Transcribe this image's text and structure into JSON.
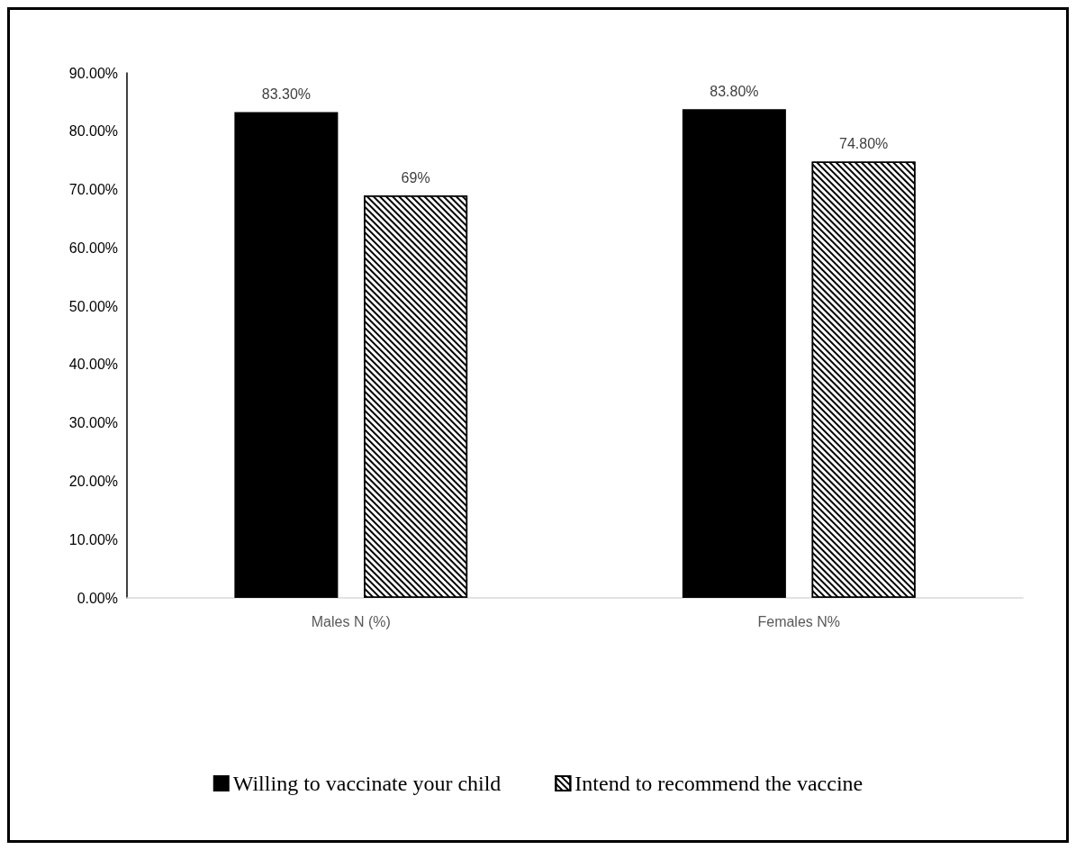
{
  "chart_data": {
    "type": "bar",
    "categories": [
      "Males N (%)",
      "Females N%"
    ],
    "series": [
      {
        "name": "Willing to vaccinate your child",
        "color": "#000000",
        "values": [
          83.3,
          83.8
        ],
        "value_labels": [
          "83.30%",
          "83.80%"
        ]
      },
      {
        "name": "Intend to recommend the vaccine",
        "color": "#ffffff",
        "values": [
          69,
          74.8
        ],
        "value_labels": [
          "69%",
          "74.80%"
        ]
      }
    ],
    "ylim": [
      0,
      90
    ],
    "yticks": [
      {
        "value": 0,
        "label": "0.00%"
      },
      {
        "value": 10,
        "label": "10.00%"
      },
      {
        "value": 20,
        "label": "20.00%"
      },
      {
        "value": 30,
        "label": "30.00%"
      },
      {
        "value": 40,
        "label": "40.00%"
      },
      {
        "value": 50,
        "label": "50.00%"
      },
      {
        "value": 60,
        "label": "60.00%"
      },
      {
        "value": 70,
        "label": "70.00%"
      },
      {
        "value": 80,
        "label": "80.00%"
      },
      {
        "value": 90,
        "label": "90.00%"
      }
    ],
    "grid": false,
    "legend": "bottom"
  }
}
